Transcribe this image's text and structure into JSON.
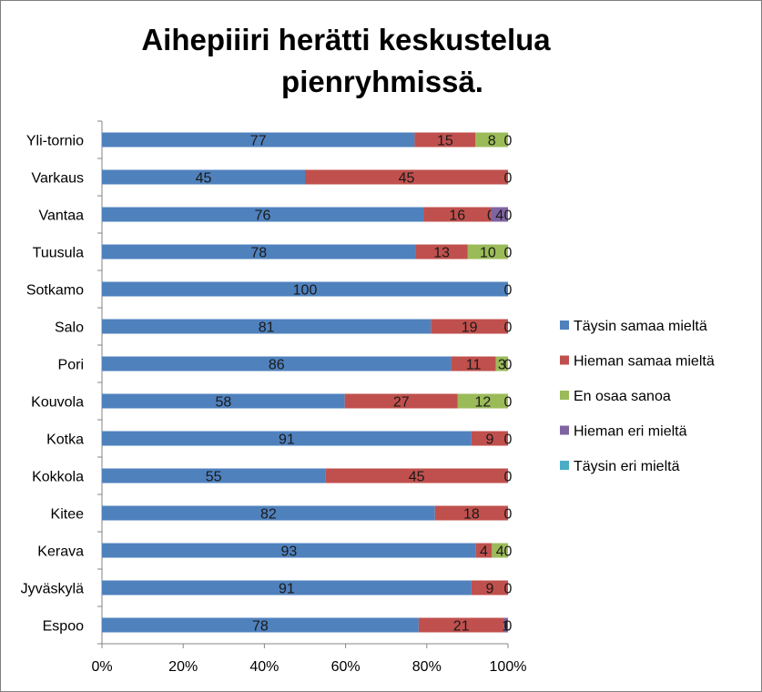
{
  "chart_data": {
    "type": "bar",
    "orientation": "horizontal",
    "stacked": "percent",
    "title": "Aihepiiiri herätti keskustelua pienryhmissä.",
    "title_lines": [
      "Aihepiiiri herätti keskustelua",
      "pienryhmissä."
    ],
    "categories": [
      "Yli-tornio",
      "Varkaus",
      "Vantaa",
      "Tuusula",
      "Sotkamo",
      "Salo",
      "Pori",
      "Kouvola",
      "Kotka",
      "Kokkola",
      "Kitee",
      "Kerava",
      "Jyväskylä",
      "Espoo"
    ],
    "series": [
      {
        "name": "Täysin samaa mieltä",
        "color": "#4f81bd",
        "values": [
          77,
          45,
          76,
          78,
          100,
          81,
          86,
          58,
          91,
          55,
          82,
          93,
          91,
          78
        ]
      },
      {
        "name": "Hieman samaa mieltä",
        "color": "#c0504d",
        "values": [
          15,
          45,
          16,
          13,
          0,
          19,
          11,
          27,
          9,
          45,
          18,
          4,
          9,
          21
        ]
      },
      {
        "name": "En osaa sanoa",
        "color": "#9bbb59",
        "values": [
          8,
          0,
          0,
          10,
          0,
          0,
          3,
          12,
          0,
          0,
          0,
          4,
          0,
          0
        ]
      },
      {
        "name": "Hieman eri mieltä",
        "color": "#8064a2",
        "values": [
          0,
          0,
          4,
          0,
          0,
          0,
          0,
          0,
          0,
          0,
          0,
          0,
          0,
          1
        ]
      },
      {
        "name": "Täysin eri mieltä",
        "color": "#4bacc6",
        "values": [
          0,
          0,
          0,
          0,
          0,
          0,
          0,
          0,
          0,
          0,
          0,
          0,
          0,
          0
        ]
      }
    ],
    "labels": [
      [
        "77",
        "15",
        "8",
        "0",
        ""
      ],
      [
        "45",
        "45",
        "",
        "",
        "0"
      ],
      [
        "76",
        "16",
        "0",
        "4",
        "0"
      ],
      [
        "78",
        "13",
        "10",
        "0",
        ""
      ],
      [
        "100",
        "",
        "",
        "",
        "0"
      ],
      [
        "81",
        "19",
        "",
        "",
        "0"
      ],
      [
        "86",
        "11",
        "3",
        "0",
        ""
      ],
      [
        "58",
        "27",
        "12",
        "0",
        ""
      ],
      [
        "91",
        "9",
        "",
        "",
        "0"
      ],
      [
        "55",
        "45",
        "",
        "",
        "0"
      ],
      [
        "82",
        "18",
        "",
        "",
        "0"
      ],
      [
        "93",
        "4",
        "4",
        "0",
        ""
      ],
      [
        "91",
        "9",
        "",
        "",
        "0"
      ],
      [
        "78",
        "21",
        "",
        "1",
        "0"
      ]
    ],
    "xticks": [
      "0%",
      "20%",
      "40%",
      "60%",
      "80%",
      "100%"
    ],
    "xlim": [
      0,
      100
    ],
    "grid": false,
    "legend_position": "right"
  }
}
